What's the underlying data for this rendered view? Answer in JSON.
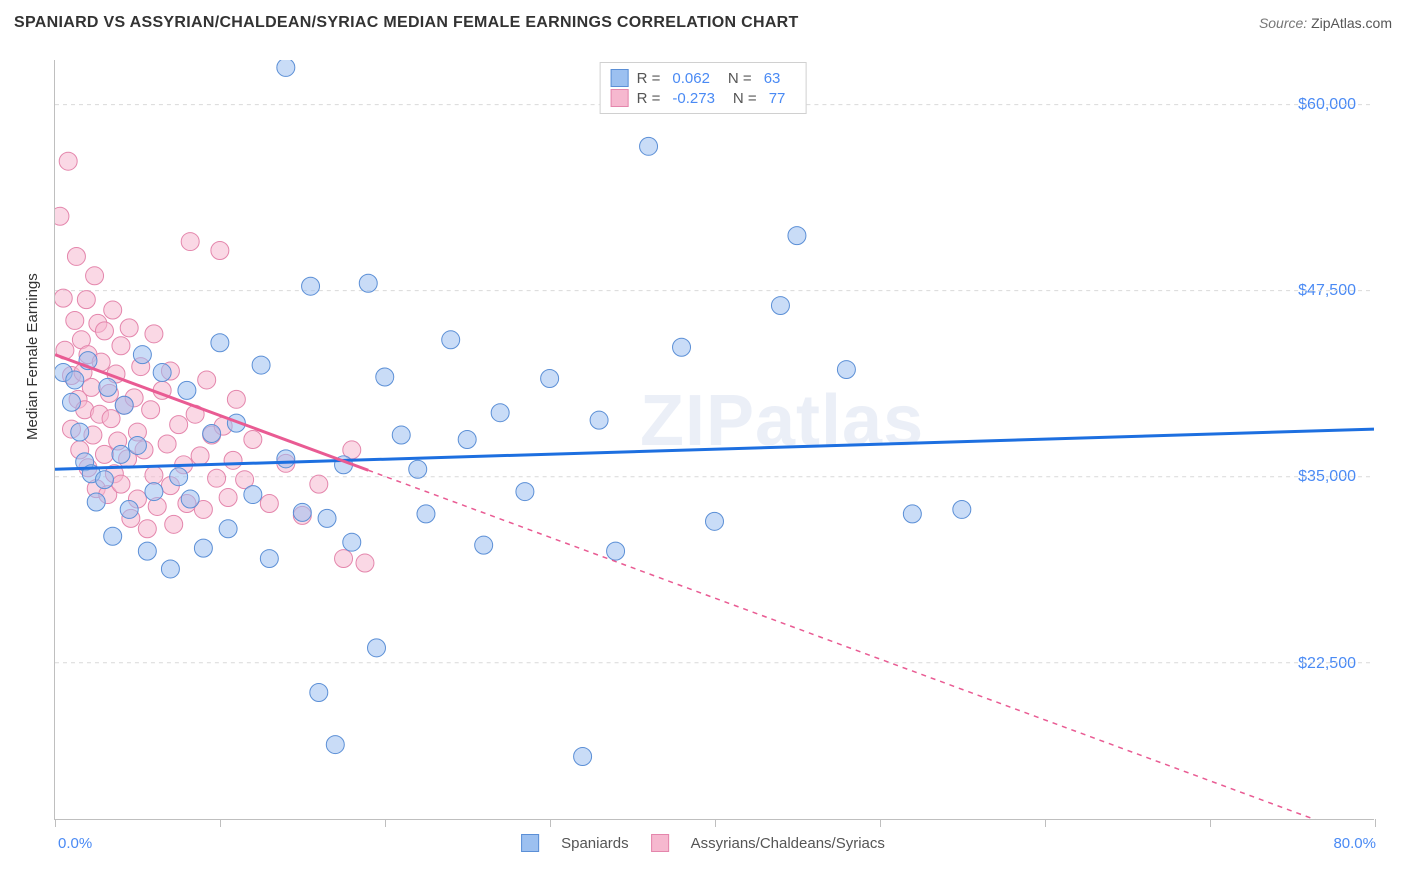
{
  "title": "SPANIARD VS ASSYRIAN/CHALDEAN/SYRIAC MEDIAN FEMALE EARNINGS CORRELATION CHART",
  "source_label": "Source:",
  "source_value": "ZipAtlas.com",
  "watermark": "ZIPatlas",
  "y_axis_label": "Median Female Earnings",
  "chart": {
    "type": "scatter",
    "background_color": "#ffffff",
    "grid_color": "#d9d9d9",
    "axis_color": "#bfbfbf",
    "xlim": [
      0,
      80
    ],
    "ylim": [
      12000,
      63000
    ],
    "x_tick_step_pct": 10,
    "x_label_min": "0.0%",
    "x_label_max": "80.0%",
    "y_ticks": [
      22500,
      35000,
      47500,
      60000
    ],
    "y_tick_labels": [
      "$22,500",
      "$35,000",
      "$47,500",
      "$60,000"
    ],
    "title_fontsize": 16,
    "label_fontsize": 15,
    "tick_label_color": "#4a8af4",
    "marker_radius": 9,
    "marker_opacity": 0.55,
    "trend_line_width": 3
  },
  "series": {
    "a": {
      "label": "Spaniards",
      "marker_fill": "#9cc0f0",
      "marker_stroke": "#5b8fd6",
      "line_color": "#1d6fe0",
      "r_label": "R =",
      "r_value": "0.062",
      "n_label": "N =",
      "n_value": "63",
      "trend": {
        "x1": 0,
        "y1": 35500,
        "x2": 80,
        "y2": 38200,
        "dash_after_x": 80
      },
      "points": [
        [
          0.5,
          42000
        ],
        [
          1,
          40000
        ],
        [
          1.2,
          41500
        ],
        [
          1.5,
          38000
        ],
        [
          1.8,
          36000
        ],
        [
          2,
          42800
        ],
        [
          2.2,
          35200
        ],
        [
          2.5,
          33300
        ],
        [
          3,
          34800
        ],
        [
          3.2,
          41000
        ],
        [
          3.5,
          31000
        ],
        [
          4,
          36500
        ],
        [
          4.2,
          39800
        ],
        [
          4.5,
          32800
        ],
        [
          5,
          37100
        ],
        [
          5.3,
          43200
        ],
        [
          5.6,
          30000
        ],
        [
          6,
          34000
        ],
        [
          6.5,
          42000
        ],
        [
          7,
          28800
        ],
        [
          7.5,
          35000
        ],
        [
          8,
          40800
        ],
        [
          8.2,
          33500
        ],
        [
          9,
          30200
        ],
        [
          9.5,
          37900
        ],
        [
          10,
          44000
        ],
        [
          10.5,
          31500
        ],
        [
          11,
          38600
        ],
        [
          12,
          33800
        ],
        [
          12.5,
          42500
        ],
        [
          13,
          29500
        ],
        [
          14,
          62500
        ],
        [
          14,
          36200
        ],
        [
          15,
          32600
        ],
        [
          15.5,
          47800
        ],
        [
          16,
          20500
        ],
        [
          16.5,
          32200
        ],
        [
          17,
          17000
        ],
        [
          17.5,
          35800
        ],
        [
          18,
          30600
        ],
        [
          19,
          48000
        ],
        [
          19.5,
          23500
        ],
        [
          20,
          41700
        ],
        [
          21,
          37800
        ],
        [
          22,
          35500
        ],
        [
          22.5,
          32500
        ],
        [
          24,
          44200
        ],
        [
          25,
          37500
        ],
        [
          26,
          30400
        ],
        [
          27,
          39300
        ],
        [
          28.5,
          34000
        ],
        [
          30,
          41600
        ],
        [
          32,
          16200
        ],
        [
          33,
          38800
        ],
        [
          34,
          30000
        ],
        [
          36,
          57200
        ],
        [
          38,
          43700
        ],
        [
          40,
          32000
        ],
        [
          44,
          46500
        ],
        [
          45,
          51200
        ],
        [
          48,
          42200
        ],
        [
          52,
          32500
        ],
        [
          55,
          32800
        ]
      ]
    },
    "b": {
      "label": "Assyrians/Chaldeans/Syriacs",
      "marker_fill": "#f6b8cf",
      "marker_stroke": "#e486ac",
      "line_color": "#e95b93",
      "r_label": "R =",
      "r_value": "-0.273",
      "n_label": "N =",
      "n_value": "77",
      "trend": {
        "x1": 0,
        "y1": 43200,
        "x2": 80,
        "y2": 10500,
        "dash_after_x": 19
      },
      "points": [
        [
          0.3,
          52500
        ],
        [
          0.5,
          47000
        ],
        [
          0.6,
          43500
        ],
        [
          0.8,
          56200
        ],
        [
          1,
          41800
        ],
        [
          1,
          38200
        ],
        [
          1.2,
          45500
        ],
        [
          1.3,
          49800
        ],
        [
          1.4,
          40200
        ],
        [
          1.5,
          36800
        ],
        [
          1.6,
          44200
        ],
        [
          1.7,
          42000
        ],
        [
          1.8,
          39500
        ],
        [
          1.9,
          46900
        ],
        [
          2,
          35600
        ],
        [
          2,
          43200
        ],
        [
          2.2,
          41000
        ],
        [
          2.3,
          37800
        ],
        [
          2.4,
          48500
        ],
        [
          2.5,
          34200
        ],
        [
          2.6,
          45300
        ],
        [
          2.7,
          39200
        ],
        [
          2.8,
          42700
        ],
        [
          3,
          36500
        ],
        [
          3,
          44800
        ],
        [
          3.2,
          33800
        ],
        [
          3.3,
          40600
        ],
        [
          3.4,
          38900
        ],
        [
          3.5,
          46200
        ],
        [
          3.6,
          35200
        ],
        [
          3.7,
          41900
        ],
        [
          3.8,
          37400
        ],
        [
          4,
          43800
        ],
        [
          4,
          34500
        ],
        [
          4.2,
          39800
        ],
        [
          4.4,
          36200
        ],
        [
          4.5,
          45000
        ],
        [
          4.6,
          32200
        ],
        [
          4.8,
          40300
        ],
        [
          5,
          38000
        ],
        [
          5,
          33500
        ],
        [
          5.2,
          42400
        ],
        [
          5.4,
          36800
        ],
        [
          5.6,
          31500
        ],
        [
          5.8,
          39500
        ],
        [
          6,
          35100
        ],
        [
          6,
          44600
        ],
        [
          6.2,
          33000
        ],
        [
          6.5,
          40800
        ],
        [
          6.8,
          37200
        ],
        [
          7,
          34400
        ],
        [
          7,
          42100
        ],
        [
          7.2,
          31800
        ],
        [
          7.5,
          38500
        ],
        [
          7.8,
          35800
        ],
        [
          8,
          33200
        ],
        [
          8.2,
          50800
        ],
        [
          8.5,
          39200
        ],
        [
          8.8,
          36400
        ],
        [
          9,
          32800
        ],
        [
          9.2,
          41500
        ],
        [
          9.5,
          37800
        ],
        [
          9.8,
          34900
        ],
        [
          10,
          50200
        ],
        [
          10.2,
          38400
        ],
        [
          10.5,
          33600
        ],
        [
          10.8,
          36100
        ],
        [
          11,
          40200
        ],
        [
          11.5,
          34800
        ],
        [
          12,
          37500
        ],
        [
          13,
          33200
        ],
        [
          14,
          35900
        ],
        [
          15,
          32400
        ],
        [
          16,
          34500
        ],
        [
          17.5,
          29500
        ],
        [
          18,
          36800
        ],
        [
          18.8,
          29200
        ]
      ]
    }
  },
  "legend_bottom": {
    "a_label": "Spaniards",
    "b_label": "Assyrians/Chaldeans/Syriacs"
  }
}
